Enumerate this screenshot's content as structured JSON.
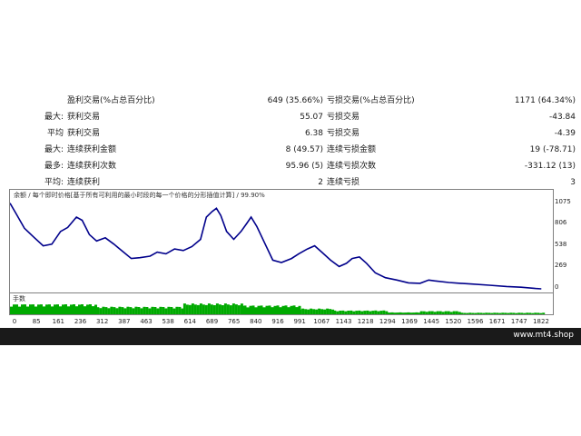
{
  "stats": [
    {
      "label": "",
      "c1": "盈利交易(%占总百分比)",
      "v1": "649 (35.66%)",
      "c2": "亏损交易(%占总百分比)",
      "v2": "1171 (64.34%)"
    },
    {
      "label": "最大:",
      "c1": "获利交易",
      "v1": "55.07",
      "c2": "亏损交易",
      "v2": "-43.84"
    },
    {
      "label": "平均",
      "c1": "获利交易",
      "v1": "6.38",
      "c2": "亏损交易",
      "v2": "-4.39"
    },
    {
      "label": "最大:",
      "c1": "连续获利金额",
      "v1": "8 (49.57)",
      "c2": "连续亏损金额",
      "v2": "19 (-78.71)"
    },
    {
      "label": "最多:",
      "c1": "连续获利次数",
      "v1": "95.96 (5)",
      "c2": "连续亏损次数",
      "v2": "-331.12 (13)"
    },
    {
      "label": "平均:",
      "c1": "连续获利",
      "v1": "2",
      "c2": "连续亏损",
      "v2": "3"
    }
  ],
  "chart_data": {
    "type": "line",
    "title": "余额 / 每个即时价格[基于所有可利用的最小时段的每一个价格的分形插值计算] / 99.90%",
    "volume_label": "手数",
    "yticks": [
      1075,
      806,
      538,
      269,
      0
    ],
    "xticks": [
      "0",
      "85",
      "161",
      "236",
      "312",
      "387",
      "463",
      "538",
      "614",
      "689",
      "765",
      "840",
      "916",
      "991",
      "1067",
      "1143",
      "1218",
      "1294",
      "1369",
      "1445",
      "1520",
      "1596",
      "1671",
      "1747",
      "1822"
    ],
    "ylim": [
      0,
      1150
    ],
    "xlim": [
      0,
      1880
    ],
    "series": [
      {
        "points": [
          [
            0,
            1075
          ],
          [
            20,
            950
          ],
          [
            50,
            760
          ],
          [
            85,
            640
          ],
          [
            115,
            540
          ],
          [
            145,
            560
          ],
          [
            175,
            720
          ],
          [
            200,
            770
          ],
          [
            230,
            900
          ],
          [
            250,
            860
          ],
          [
            275,
            680
          ],
          [
            300,
            600
          ],
          [
            330,
            640
          ],
          [
            360,
            560
          ],
          [
            390,
            470
          ],
          [
            420,
            380
          ],
          [
            450,
            390
          ],
          [
            485,
            410
          ],
          [
            510,
            460
          ],
          [
            540,
            440
          ],
          [
            570,
            500
          ],
          [
            600,
            480
          ],
          [
            630,
            530
          ],
          [
            660,
            620
          ],
          [
            680,
            900
          ],
          [
            700,
            970
          ],
          [
            715,
            1010
          ],
          [
            730,
            920
          ],
          [
            750,
            720
          ],
          [
            775,
            620
          ],
          [
            800,
            720
          ],
          [
            820,
            820
          ],
          [
            835,
            900
          ],
          [
            855,
            780
          ],
          [
            880,
            590
          ],
          [
            910,
            360
          ],
          [
            940,
            330
          ],
          [
            975,
            380
          ],
          [
            1000,
            440
          ],
          [
            1030,
            500
          ],
          [
            1055,
            540
          ],
          [
            1080,
            460
          ],
          [
            1110,
            360
          ],
          [
            1140,
            280
          ],
          [
            1165,
            320
          ],
          [
            1185,
            380
          ],
          [
            1210,
            400
          ],
          [
            1235,
            320
          ],
          [
            1265,
            200
          ],
          [
            1300,
            140
          ],
          [
            1340,
            110
          ],
          [
            1380,
            75
          ],
          [
            1420,
            70
          ],
          [
            1450,
            110
          ],
          [
            1470,
            100
          ],
          [
            1520,
            80
          ],
          [
            1560,
            70
          ],
          [
            1600,
            60
          ],
          [
            1660,
            45
          ],
          [
            1720,
            30
          ],
          [
            1770,
            20
          ],
          [
            1820,
            5
          ],
          [
            1840,
            0
          ]
        ]
      }
    ],
    "volume": [
      {
        "x0": 0,
        "x1": 300,
        "level": 0.8
      },
      {
        "x0": 300,
        "x1": 600,
        "level": 0.6
      },
      {
        "x0": 600,
        "x1": 800,
        "level": 0.85
      },
      {
        "x0": 800,
        "x1": 1000,
        "level": 0.7
      },
      {
        "x0": 1000,
        "x1": 1120,
        "level": 0.45
      },
      {
        "x0": 1120,
        "x1": 1300,
        "level": 0.3
      },
      {
        "x0": 1300,
        "x1": 1420,
        "level": 0.15
      },
      {
        "x0": 1420,
        "x1": 1560,
        "level": 0.25
      },
      {
        "x0": 1560,
        "x1": 1850,
        "level": 0.12
      }
    ]
  },
  "brand": "www.mt4.shop",
  "colors": {
    "line": "#00008b",
    "volume": "#00aa00",
    "footer": "#1a1a1a"
  }
}
